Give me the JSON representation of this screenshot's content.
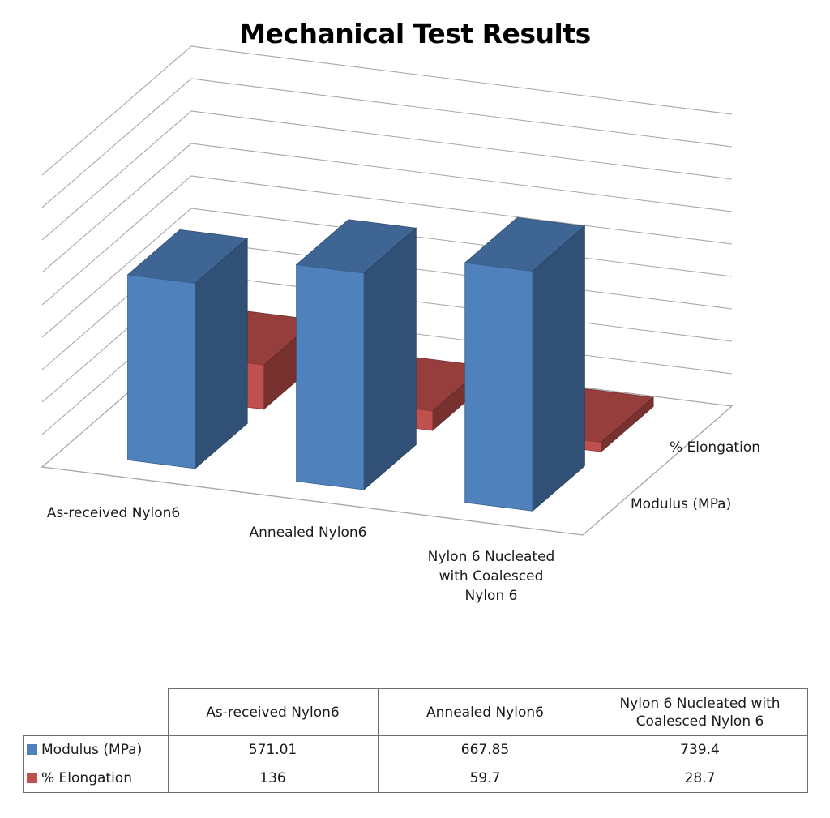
{
  "chart_data": {
    "type": "bar",
    "title": "Mechanical Test Results",
    "categories": [
      "As-received Nylon6",
      "Annealed Nylon6",
      "Nylon 6 Nucleated with Coalesced Nylon 6"
    ],
    "axis_categories": [
      "As-received Nylon6",
      "Annealed Nylon6",
      "Nylon 6 Nucleated\nwith Coalesced\nNylon 6"
    ],
    "table_headers": [
      "As-received Nylon6",
      "Annealed Nylon6",
      "Nylon 6 Nucleated with\nCoalesced Nylon 6"
    ],
    "series": [
      {
        "name": "Modulus (MPa)",
        "values": [
          571.01,
          667.85,
          739.4
        ],
        "color": "#4f81bd"
      },
      {
        "name": "% Elongation",
        "values": [
          136,
          59.7,
          28.7
        ],
        "color": "#c0504d"
      }
    ],
    "depth_labels": [
      "% Elongation",
      "Modulus (MPa)"
    ],
    "ylim": [
      0,
      900
    ],
    "grid": true,
    "chart_style": "3d-column",
    "data_table": true,
    "legend": "in-data-table"
  }
}
